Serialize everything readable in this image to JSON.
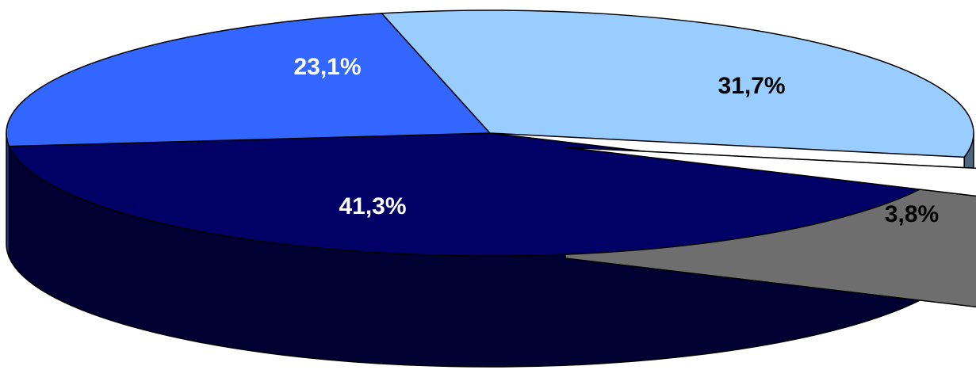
{
  "chart_data": {
    "type": "pie",
    "style": "3d-exploded",
    "slices": [
      {
        "label": "41,3%",
        "value": 41.3,
        "color": "#000066",
        "side_color": "#000033",
        "text_color": "#ffffff"
      },
      {
        "label": "23,1%",
        "value": 23.1,
        "color": "#3366ff",
        "side_color": "#1a3399",
        "text_color": "#ffffff"
      },
      {
        "label": "31,7%",
        "value": 31.7,
        "color": "#99ccff",
        "side_color": "#4d6680",
        "text_color": "#000000"
      },
      {
        "label": "3,8%",
        "value": 3.8,
        "color": "#ffffff",
        "side_color": "#8c8c8c",
        "text_color": "#000000",
        "exploded": true
      }
    ],
    "title": "",
    "legend": "none"
  }
}
